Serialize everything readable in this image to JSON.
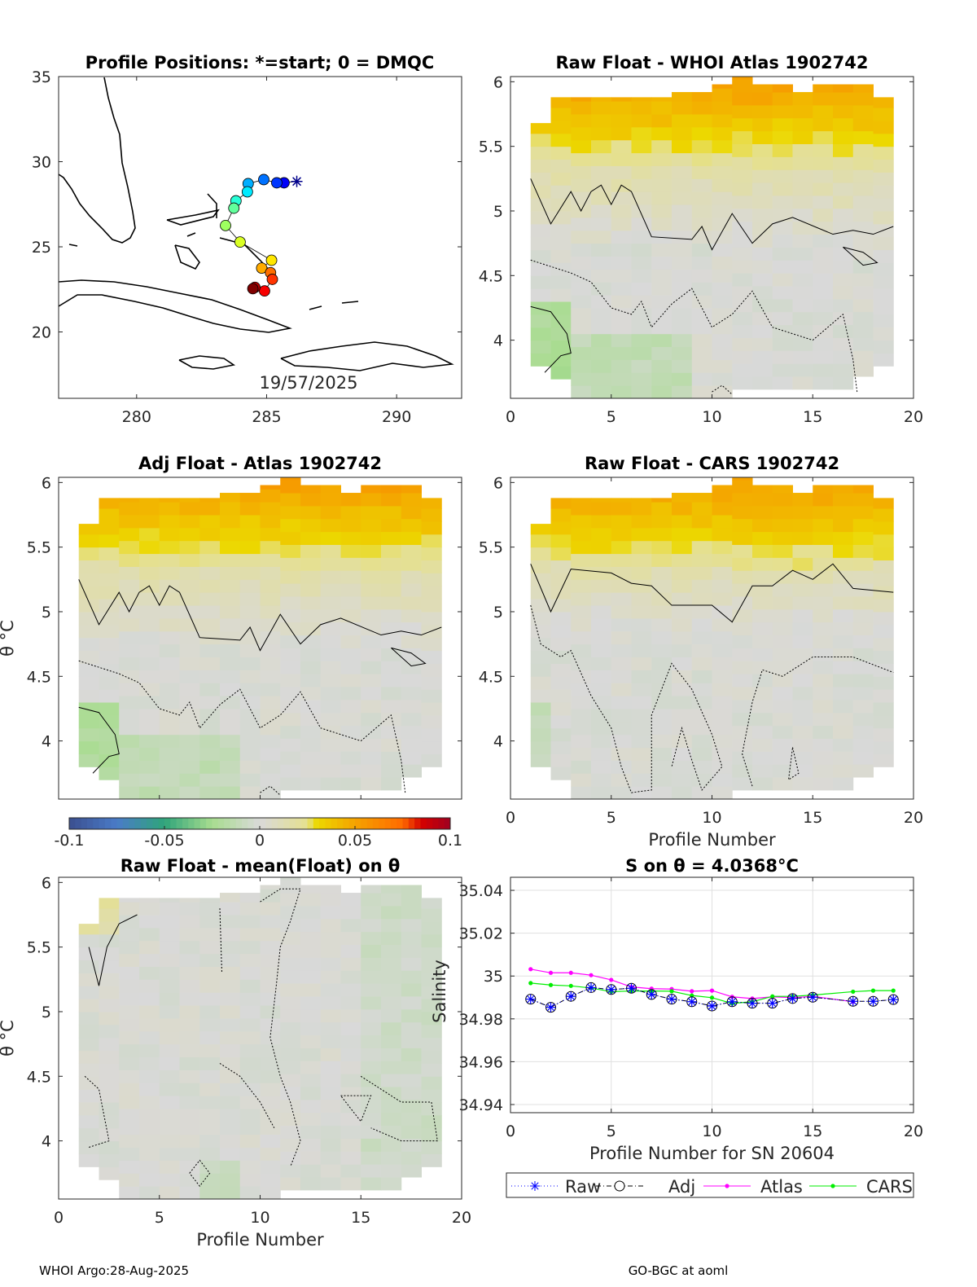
{
  "panels": {
    "map": {
      "title": "Profile Positions: *=start; 0 = DMQC",
      "date": "19/57/2025",
      "xticks": [
        "280",
        "285",
        "290"
      ],
      "yticks": [
        "20",
        "25",
        "30",
        "35"
      ]
    },
    "raw_atlas": {
      "title": "Raw Float - WHOI Atlas  1902742",
      "xticks": [
        "0",
        "5",
        "10",
        "15",
        "20"
      ],
      "yticks": [
        "4",
        "4.5",
        "5",
        "5.5",
        "6"
      ]
    },
    "adj_atlas": {
      "title": "Adj Float - Atlas  1902742",
      "ylabel": "θ °C",
      "yticks": [
        "4",
        "4.5",
        "5",
        "5.5",
        "6"
      ]
    },
    "raw_cars": {
      "title": "Raw Float - CARS  1902742",
      "xlabel": "Profile Number",
      "xticks": [
        "0",
        "5",
        "10",
        "15",
        "20"
      ],
      "yticks": [
        "4",
        "4.5",
        "5",
        "5.5",
        "6"
      ]
    },
    "colorbar": {
      "ticks": [
        "-0.1",
        "-0.05",
        "0",
        "0.05",
        "0.1"
      ]
    },
    "raw_mean": {
      "title": "Raw Float - mean(Float) on θ",
      "ylabel": "θ °C",
      "xlabel": "Profile Number",
      "xticks": [
        "0",
        "5",
        "10",
        "15",
        "20"
      ],
      "yticks": [
        "4",
        "4.5",
        "5",
        "5.5",
        "6"
      ]
    },
    "salinity": {
      "title": "S on θ = 4.0368°C",
      "xlabel": "Profile Number for SN 20604",
      "ylabel": "Salinity",
      "xticks": [
        "0",
        "5",
        "10",
        "15",
        "20"
      ],
      "yticks": [
        "34.94",
        "34.96",
        "34.98",
        "35",
        "35.02",
        "35.04"
      ]
    }
  },
  "footer": {
    "left": "WHOI Argo:28-Aug-2025",
    "right": "GO-BGC at aoml"
  },
  "chart_data": [
    {
      "type": "scatter",
      "title": "Profile Positions: *=start; 0 = DMQC",
      "xlim": [
        277,
        292.5
      ],
      "ylim": [
        16.1,
        35
      ],
      "start": {
        "lon": 286.16,
        "lat": 28.84
      },
      "positions": [
        {
          "lon": 285.67,
          "lat": 28.76
        },
        {
          "lon": 285.39,
          "lat": 28.76
        },
        {
          "lon": 284.89,
          "lat": 28.95
        },
        {
          "lon": 284.29,
          "lat": 28.71
        },
        {
          "lon": 284.26,
          "lat": 28.23
        },
        {
          "lon": 283.82,
          "lat": 27.7
        },
        {
          "lon": 283.74,
          "lat": 27.27
        },
        {
          "lon": 283.42,
          "lat": 26.25
        },
        {
          "lon": 283.98,
          "lat": 25.28
        },
        {
          "lon": 285.19,
          "lat": 24.21
        },
        {
          "lon": 284.81,
          "lat": 23.75
        },
        {
          "lon": 285.15,
          "lat": 23.48
        },
        {
          "lon": 285.22,
          "lat": 23.09
        },
        {
          "lon": 284.92,
          "lat": 22.41
        },
        {
          "lon": 284.55,
          "lat": 22.62
        },
        {
          "lon": 284.47,
          "lat": 22.54
        }
      ]
    },
    {
      "type": "heatmap",
      "title": "Raw Float - WHOI Atlas  1902742",
      "xlim": [
        0,
        20
      ],
      "ylim": [
        3.55,
        6.04
      ],
      "clim": [
        -0.1,
        0.1
      ]
    },
    {
      "type": "heatmap",
      "title": "Adj Float - Atlas  1902742",
      "xlim": [
        0,
        20
      ],
      "ylim": [
        3.55,
        6.04
      ],
      "clim": [
        -0.1,
        0.1
      ]
    },
    {
      "type": "heatmap",
      "title": "Raw Float - CARS  1902742",
      "xlim": [
        0,
        20
      ],
      "ylim": [
        3.55,
        6.04
      ],
      "clim": [
        -0.1,
        0.1
      ]
    },
    {
      "type": "heatmap",
      "title": "Raw Float - mean(Float) on θ",
      "xlim": [
        0,
        20
      ],
      "ylim": [
        3.55,
        6.04
      ],
      "clim": [
        -0.1,
        0.1
      ]
    },
    {
      "type": "line",
      "title": "S on θ = 4.0368°C",
      "xlabel": "Profile Number for SN 20604",
      "ylabel": "Salinity",
      "xlim": [
        0,
        20
      ],
      "ylim": [
        34.93,
        35.044
      ],
      "grid": true,
      "legend": "bottom",
      "series": [
        {
          "name": "Raw",
          "color": "#0000ff",
          "x": [
            1,
            2,
            3,
            4,
            5,
            6,
            7,
            8,
            9,
            10,
            11,
            12,
            13,
            14,
            15,
            17,
            18,
            19
          ],
          "values": [
            34.9892,
            34.9854,
            34.9905,
            34.9946,
            34.9937,
            34.9943,
            34.9914,
            34.9892,
            34.988,
            34.986,
            34.988,
            34.9873,
            34.9873,
            34.9895,
            34.9901,
            34.9882,
            34.9882,
            34.989
          ]
        },
        {
          "name": "Adj",
          "color": "#000000",
          "x": [
            1,
            2,
            3,
            4,
            5,
            6,
            7,
            8,
            9,
            10,
            11,
            12,
            13,
            14,
            15,
            17,
            18,
            19
          ],
          "values": [
            34.9892,
            34.9854,
            34.9905,
            34.9946,
            34.9937,
            34.9943,
            34.9914,
            34.9892,
            34.988,
            34.986,
            34.988,
            34.9873,
            34.9873,
            34.9895,
            34.9901,
            34.9882,
            34.9882,
            34.989
          ]
        },
        {
          "name": "Atlas",
          "color": "#ff00ff",
          "x": [
            1,
            2,
            3,
            4,
            5,
            6,
            7,
            8,
            9,
            10,
            11,
            12,
            13,
            14,
            15,
            17
          ],
          "values": [
            35.0032,
            35.0015,
            35.0015,
            35.0004,
            34.9982,
            34.9949,
            34.9941,
            34.9939,
            34.9929,
            34.9932,
            34.9903,
            34.9895,
            34.9903,
            34.9899,
            34.9905,
            34.988
          ]
        },
        {
          "name": "CARS",
          "color": "#00ee00",
          "x": [
            1,
            2,
            3,
            4,
            5,
            6,
            7,
            8,
            9,
            10,
            11,
            12,
            13,
            14,
            15,
            17,
            18,
            19
          ],
          "values": [
            34.9967,
            34.9958,
            34.9954,
            34.9944,
            34.9927,
            34.993,
            34.993,
            34.9929,
            34.9909,
            34.9899,
            34.9872,
            34.988,
            34.9905,
            34.9905,
            34.9911,
            34.9927,
            34.9932,
            34.9932
          ]
        }
      ]
    }
  ]
}
